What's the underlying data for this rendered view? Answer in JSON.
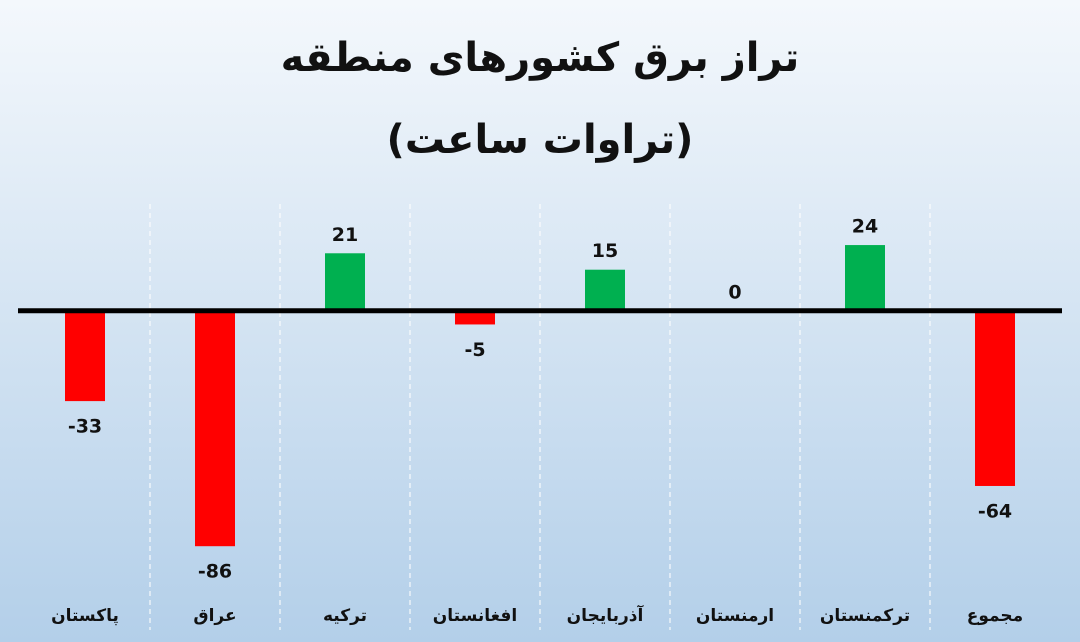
{
  "chart_data": {
    "type": "bar",
    "title": "تراز برق کشورهای منطقه",
    "subtitle": "(تراوات ساعت)",
    "categories": [
      "پاکستان",
      "عراق",
      "ترکیه",
      "افغانستان",
      "آذربایجان",
      "ارمنستان",
      "ترکمنستان",
      "مجموع"
    ],
    "values": [
      -33,
      -86,
      21,
      -5,
      15,
      0,
      24,
      -64
    ],
    "color": "#00b050",
    "negative_color": "#ff0000",
    "ylim": [
      -102,
      39
    ]
  }
}
